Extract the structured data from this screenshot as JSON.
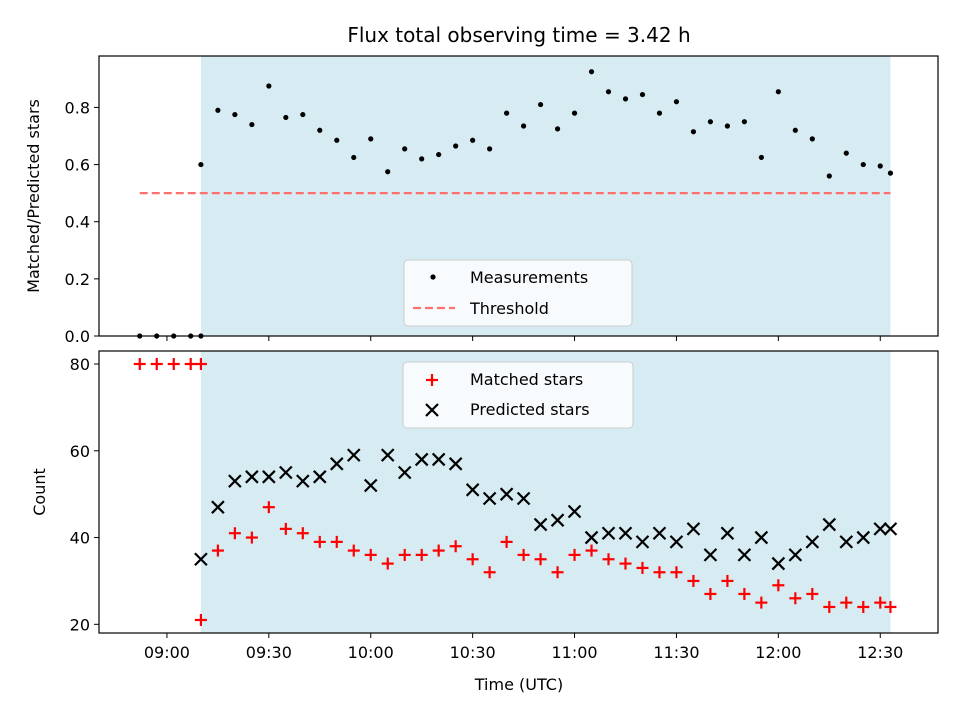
{
  "chart_data": [
    {
      "type": "scatter",
      "title": "Flux total observing time = 3.42 h",
      "xlabel": "",
      "ylabel": "Matched/Predicted stars",
      "ylim": [
        0,
        0.98
      ],
      "yticks": [
        0.0,
        0.2,
        0.4,
        0.6,
        0.8
      ],
      "ytick_labels": [
        "0.0",
        "0.2",
        "0.4",
        "0.6",
        "0.8"
      ],
      "xlim": [
        "08:40",
        "12:47"
      ],
      "xticks": [
        "09:00",
        "09:30",
        "10:00",
        "10:30",
        "11:00",
        "11:30",
        "12:00",
        "12:30"
      ],
      "xtick_labels_visible": false,
      "shaded_region": {
        "from": "09:10",
        "to": "12:33",
        "color": "#add8e6"
      },
      "legend_position": "lower center",
      "series": [
        {
          "name": "Measurements",
          "marker": "dot",
          "color": "#000000",
          "points": [
            [
              "08:52",
              0.0
            ],
            [
              "08:57",
              0.0
            ],
            [
              "09:02",
              0.0
            ],
            [
              "09:07",
              0.0
            ],
            [
              "09:10",
              0.0
            ],
            [
              "09:10",
              0.6
            ],
            [
              "09:15",
              0.79
            ],
            [
              "09:20",
              0.775
            ],
            [
              "09:25",
              0.74
            ],
            [
              "09:30",
              0.875
            ],
            [
              "09:35",
              0.765
            ],
            [
              "09:40",
              0.775
            ],
            [
              "09:45",
              0.72
            ],
            [
              "09:50",
              0.685
            ],
            [
              "09:55",
              0.625
            ],
            [
              "10:00",
              0.69
            ],
            [
              "10:05",
              0.575
            ],
            [
              "10:10",
              0.655
            ],
            [
              "10:15",
              0.62
            ],
            [
              "10:20",
              0.635
            ],
            [
              "10:25",
              0.665
            ],
            [
              "10:30",
              0.685
            ],
            [
              "10:35",
              0.655
            ],
            [
              "10:40",
              0.78
            ],
            [
              "10:45",
              0.735
            ],
            [
              "10:50",
              0.81
            ],
            [
              "10:55",
              0.725
            ],
            [
              "11:00",
              0.78
            ],
            [
              "11:05",
              0.925
            ],
            [
              "11:10",
              0.855
            ],
            [
              "11:15",
              0.83
            ],
            [
              "11:20",
              0.845
            ],
            [
              "11:25",
              0.78
            ],
            [
              "11:30",
              0.82
            ],
            [
              "11:35",
              0.715
            ],
            [
              "11:40",
              0.75
            ],
            [
              "11:45",
              0.735
            ],
            [
              "11:50",
              0.75
            ],
            [
              "11:55",
              0.625
            ],
            [
              "12:00",
              0.855
            ],
            [
              "12:05",
              0.72
            ],
            [
              "12:10",
              0.69
            ],
            [
              "12:15",
              0.56
            ],
            [
              "12:20",
              0.64
            ],
            [
              "12:25",
              0.6
            ],
            [
              "12:30",
              0.595
            ],
            [
              "12:33",
              0.57
            ]
          ]
        },
        {
          "name": "Threshold",
          "marker": "dashed-line",
          "color": "#ff7070",
          "points": [
            [
              "08:52",
              0.5
            ],
            [
              "12:33",
              0.5
            ]
          ]
        }
      ]
    },
    {
      "type": "scatter",
      "title": "",
      "xlabel": "Time (UTC)",
      "ylabel": "Count",
      "ylim": [
        18,
        83
      ],
      "yticks": [
        20,
        40,
        60,
        80
      ],
      "ytick_labels": [
        "20",
        "40",
        "60",
        "80"
      ],
      "xlim": [
        "08:40",
        "12:47"
      ],
      "xticks": [
        "09:00",
        "09:30",
        "10:00",
        "10:30",
        "11:00",
        "11:30",
        "12:00",
        "12:30"
      ],
      "xtick_labels": [
        "09:00",
        "09:30",
        "10:00",
        "10:30",
        "11:00",
        "11:30",
        "12:00",
        "12:30"
      ],
      "shaded_region": {
        "from": "09:10",
        "to": "12:33",
        "color": "#add8e6"
      },
      "legend_position": "upper center",
      "series": [
        {
          "name": "Matched stars",
          "marker": "plus",
          "color": "#ff0000",
          "points": [
            [
              "08:52",
              80
            ],
            [
              "08:57",
              80
            ],
            [
              "09:02",
              80
            ],
            [
              "09:07",
              80
            ],
            [
              "09:10",
              80
            ],
            [
              "09:10",
              21
            ],
            [
              "09:15",
              37
            ],
            [
              "09:20",
              41
            ],
            [
              "09:25",
              40
            ],
            [
              "09:30",
              47
            ],
            [
              "09:35",
              42
            ],
            [
              "09:40",
              41
            ],
            [
              "09:45",
              39
            ],
            [
              "09:50",
              39
            ],
            [
              "09:55",
              37
            ],
            [
              "10:00",
              36
            ],
            [
              "10:05",
              34
            ],
            [
              "10:10",
              36
            ],
            [
              "10:15",
              36
            ],
            [
              "10:20",
              37
            ],
            [
              "10:25",
              38
            ],
            [
              "10:30",
              35
            ],
            [
              "10:35",
              32
            ],
            [
              "10:40",
              39
            ],
            [
              "10:45",
              36
            ],
            [
              "10:50",
              35
            ],
            [
              "10:55",
              32
            ],
            [
              "11:00",
              36
            ],
            [
              "11:05",
              37
            ],
            [
              "11:10",
              35
            ],
            [
              "11:15",
              34
            ],
            [
              "11:20",
              33
            ],
            [
              "11:25",
              32
            ],
            [
              "11:30",
              32
            ],
            [
              "11:35",
              30
            ],
            [
              "11:40",
              27
            ],
            [
              "11:45",
              30
            ],
            [
              "11:50",
              27
            ],
            [
              "11:55",
              25
            ],
            [
              "12:00",
              29
            ],
            [
              "12:05",
              26
            ],
            [
              "12:10",
              27
            ],
            [
              "12:15",
              24
            ],
            [
              "12:20",
              25
            ],
            [
              "12:25",
              24
            ],
            [
              "12:30",
              25
            ],
            [
              "12:33",
              24
            ]
          ]
        },
        {
          "name": "Predicted stars",
          "marker": "cross",
          "color": "#000000",
          "points": [
            [
              "09:10",
              35
            ],
            [
              "09:15",
              47
            ],
            [
              "09:20",
              53
            ],
            [
              "09:25",
              54
            ],
            [
              "09:30",
              54
            ],
            [
              "09:35",
              55
            ],
            [
              "09:40",
              53
            ],
            [
              "09:45",
              54
            ],
            [
              "09:50",
              57
            ],
            [
              "09:55",
              59
            ],
            [
              "10:00",
              52
            ],
            [
              "10:05",
              59
            ],
            [
              "10:10",
              55
            ],
            [
              "10:15",
              58
            ],
            [
              "10:20",
              58
            ],
            [
              "10:25",
              57
            ],
            [
              "10:30",
              51
            ],
            [
              "10:35",
              49
            ],
            [
              "10:40",
              50
            ],
            [
              "10:45",
              49
            ],
            [
              "10:50",
              43
            ],
            [
              "10:55",
              44
            ],
            [
              "11:00",
              46
            ],
            [
              "11:05",
              40
            ],
            [
              "11:10",
              41
            ],
            [
              "11:15",
              41
            ],
            [
              "11:20",
              39
            ],
            [
              "11:25",
              41
            ],
            [
              "11:30",
              39
            ],
            [
              "11:35",
              42
            ],
            [
              "11:40",
              36
            ],
            [
              "11:45",
              41
            ],
            [
              "11:50",
              36
            ],
            [
              "11:55",
              40
            ],
            [
              "12:00",
              34
            ],
            [
              "12:05",
              36
            ],
            [
              "12:10",
              39
            ],
            [
              "12:15",
              43
            ],
            [
              "12:20",
              39
            ],
            [
              "12:25",
              40
            ],
            [
              "12:30",
              42
            ],
            [
              "12:33",
              42
            ]
          ]
        }
      ]
    }
  ]
}
